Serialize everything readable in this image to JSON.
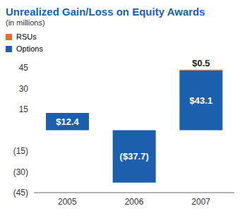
{
  "chart_data": {
    "type": "bar",
    "title": "Unrealized Gain/Loss on Equity Awards",
    "subtitle": "(in millions)",
    "categories": [
      "2005",
      "2006",
      "2007"
    ],
    "series": [
      {
        "name": "Options",
        "color": "#1b5fad",
        "values": [
          12.4,
          -37.7,
          43.1
        ],
        "value_labels": [
          "$12.4",
          "($37.7)",
          "$43.1"
        ]
      },
      {
        "name": "RSUs",
        "color": "#f26a21",
        "values": [
          null,
          null,
          0.5
        ],
        "value_labels": [
          null,
          null,
          "$0.5"
        ]
      }
    ],
    "stacked": true,
    "data_labels": true,
    "legend": "top-left",
    "grid": false,
    "ylim": [
      -45,
      45
    ],
    "yticks": [
      {
        "value": -45,
        "label": "(45)"
      },
      {
        "value": -30,
        "label": "(30)"
      },
      {
        "value": -15,
        "label": "(15)"
      },
      15,
      30,
      45
    ]
  }
}
